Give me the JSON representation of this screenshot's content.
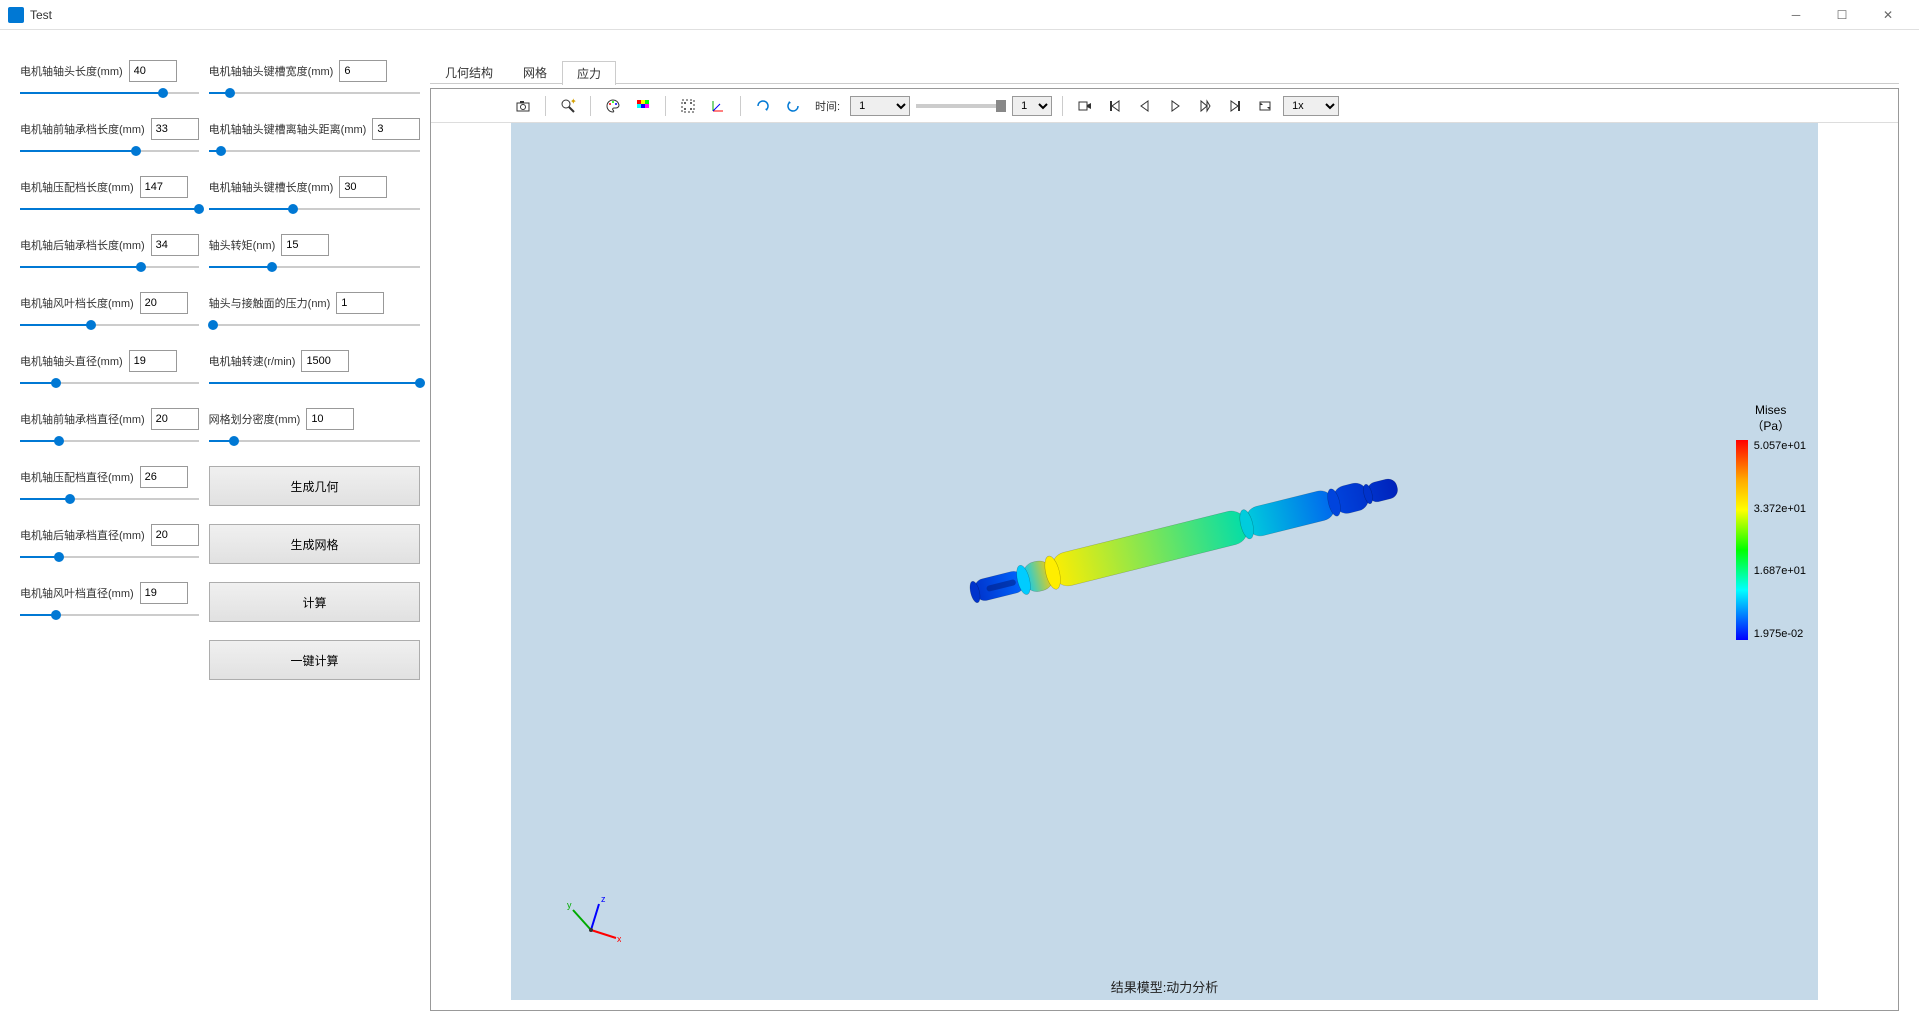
{
  "window": {
    "title": "Test"
  },
  "params_left": [
    {
      "label": "电机轴轴头长度(mm)",
      "value": "40",
      "fill": 80
    },
    {
      "label": "电机轴前轴承档长度(mm)",
      "value": "33",
      "fill": 65
    },
    {
      "label": "电机轴压配档长度(mm)",
      "value": "147",
      "fill": 100
    },
    {
      "label": "电机轴后轴承档长度(mm)",
      "value": "34",
      "fill": 68
    },
    {
      "label": "电机轴风叶档长度(mm)",
      "value": "20",
      "fill": 40
    },
    {
      "label": "电机轴轴头直径(mm)",
      "value": "19",
      "fill": 20
    },
    {
      "label": "电机轴前轴承档直径(mm)",
      "value": "20",
      "fill": 22
    },
    {
      "label": "电机轴压配档直径(mm)",
      "value": "26",
      "fill": 28
    },
    {
      "label": "电机轴后轴承档直径(mm)",
      "value": "20",
      "fill": 22
    },
    {
      "label": "电机轴风叶档直径(mm)",
      "value": "19",
      "fill": 20
    }
  ],
  "params_right": [
    {
      "label": "电机轴轴头键槽宽度(mm)",
      "value": "6",
      "fill": 10
    },
    {
      "label": "电机轴轴头键槽离轴头距离(mm)",
      "value": "3",
      "fill": 6
    },
    {
      "label": "电机轴轴头键槽长度(mm)",
      "value": "30",
      "fill": 40
    },
    {
      "label": "轴头转矩(nm)",
      "value": "15",
      "fill": 30
    },
    {
      "label": "轴头与接触面的压力(nm)",
      "value": "1",
      "fill": 2
    },
    {
      "label": "电机轴转速(r/min)",
      "value": "1500",
      "fill": 100
    },
    {
      "label": "网格划分密度(mm)",
      "value": "10",
      "fill": 12
    }
  ],
  "buttons": {
    "gen_geometry": "生成几何",
    "gen_mesh": "生成网格",
    "compute": "计算",
    "one_click": "一键计算"
  },
  "tabs": [
    {
      "label": "几何结构",
      "active": false
    },
    {
      "label": "网格",
      "active": false
    },
    {
      "label": "应力",
      "active": true
    }
  ],
  "toolbar": {
    "time_label": "时间:",
    "frame_value": "1",
    "frame_value2": "1",
    "speed": "1x"
  },
  "viewer": {
    "caption": "结果模型:动力分析",
    "canvas_bg": "#c5d9e8"
  },
  "legend": {
    "title1": "Mises",
    "title2": "（Pa）",
    "labels": [
      "5.057e+01",
      "3.372e+01",
      "1.687e+01",
      "1.975e-02"
    ],
    "gradient_stops": [
      "#ff0000",
      "#ffaa00",
      "#ffff00",
      "#00ff00",
      "#00ffff",
      "#0000ff"
    ]
  },
  "axes": {
    "x_color": "#ff0000",
    "y_color": "#00aa00",
    "z_color": "#0000ff"
  },
  "shaft": {
    "segments": [
      {
        "len": 50,
        "dia": 22,
        "color_left": "#0033cc",
        "color_right": "#0066ff"
      },
      {
        "len": 30,
        "dia": 30,
        "color_left": "#00ccff",
        "color_right": "#ffcc00"
      },
      {
        "len": 200,
        "dia": 34,
        "color_left": "#ffee00",
        "color_right": "#00ddaa"
      },
      {
        "len": 90,
        "dia": 30,
        "color_left": "#00ccdd",
        "color_right": "#0066ee"
      },
      {
        "len": 35,
        "dia": 28,
        "color_left": "#0044dd",
        "color_right": "#0033cc"
      },
      {
        "len": 30,
        "dia": 20,
        "color_left": "#0033cc",
        "color_right": "#0022bb"
      }
    ]
  }
}
